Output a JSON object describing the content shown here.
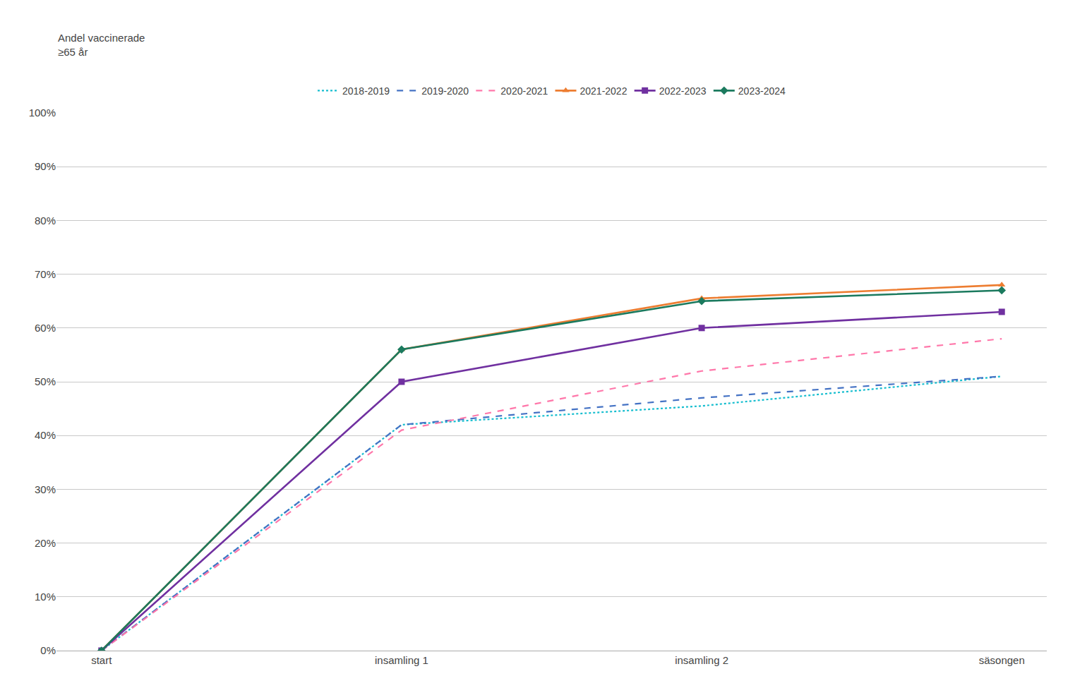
{
  "chart_data": {
    "type": "line",
    "ylabel": [
      "Andel vaccinerade",
      "≥65 år"
    ],
    "categories": [
      "start",
      "insamling 1",
      "insamling 2",
      "säsongen"
    ],
    "series": [
      {
        "name": "2018-2019",
        "color": "#17BECF",
        "line_style": "dotted",
        "values": [
          0.0,
          0.42,
          0.455,
          0.51
        ]
      },
      {
        "name": "2019-2020",
        "color": "#4472C4",
        "line_style": "dashed",
        "values": [
          0.0,
          0.42,
          0.47,
          0.51
        ]
      },
      {
        "name": "2020-2021",
        "color": "#FF77AA",
        "line_style": "dashed",
        "values": [
          0.0,
          0.41,
          0.52,
          0.58
        ]
      },
      {
        "name": "2021-2022",
        "color": "#ED7D31",
        "line_style": "solid",
        "marker": "triangle",
        "values": [
          0.0,
          0.56,
          0.655,
          0.68
        ]
      },
      {
        "name": "2022-2023",
        "color": "#7030A0",
        "line_style": "solid",
        "marker": "square",
        "values": [
          0.0,
          0.5,
          0.6,
          0.63
        ]
      },
      {
        "name": "2023-2024",
        "color": "#1B7A5E",
        "line_style": "solid",
        "marker": "diamond",
        "values": [
          0.0,
          0.56,
          0.65,
          0.67
        ]
      }
    ],
    "ylim": [
      0.0,
      1.0
    ],
    "yticks": [
      {
        "value": 0.0,
        "label": "0%"
      },
      {
        "value": 0.1,
        "label": "10%"
      },
      {
        "value": 0.2,
        "label": "20%"
      },
      {
        "value": 0.3,
        "label": "30%"
      },
      {
        "value": 0.4,
        "label": "40%"
      },
      {
        "value": 0.5,
        "label": "50%"
      },
      {
        "value": 0.6,
        "label": "60%"
      },
      {
        "value": 0.7,
        "label": "70%"
      },
      {
        "value": 0.8,
        "label": "80%"
      },
      {
        "value": 0.9,
        "label": "90%"
      },
      {
        "value": 1.0,
        "label": "100%"
      }
    ],
    "grid": "y",
    "legend": "top"
  }
}
